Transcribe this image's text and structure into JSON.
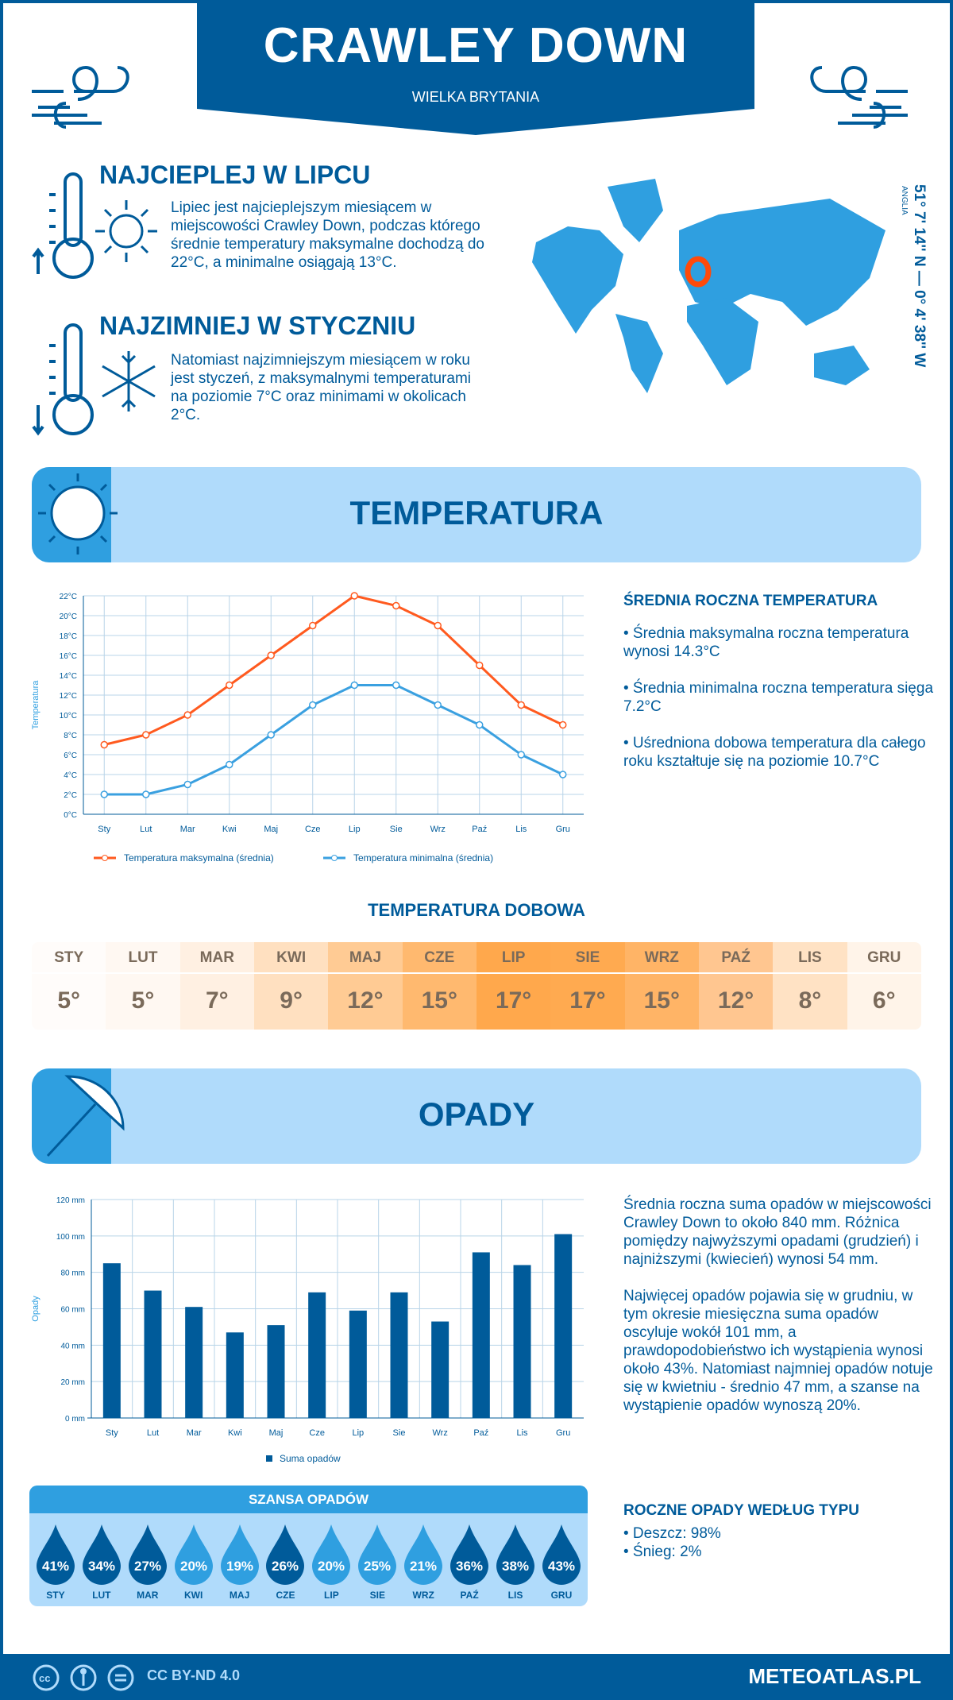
{
  "header": {
    "title": "CRAWLEY DOWN",
    "subtitle": "WIELKA BRYTANIA"
  },
  "warmest": {
    "heading": "NAJCIEPLEJ W LIPCU",
    "text": "Lipiec jest najcieplejszym miesiącem w miejscowości Crawley Down, podczas którego średnie temperatury maksymalne dochodzą do 22°C, a minimalne osiągają 13°C."
  },
  "coldest": {
    "heading": "NAJZIMNIEJ W STYCZNIU",
    "text": "Natomiast najzimniejszym miesiącem w roku jest styczeń, z maksymalnymi temperaturami na poziomie 7°C oraz minimami w okolicach 2°C."
  },
  "location": {
    "coords": "51° 7' 14'' N — 0° 4' 38'' W",
    "region": "ANGLIA"
  },
  "temperature_section": {
    "title": "TEMPERATURA",
    "summary_heading": "ŚREDNIA ROCZNA TEMPERATURA",
    "bullets": [
      "• Średnia maksymalna roczna temperatura wynosi 14.3°C",
      "• Średnia minimalna roczna temperatura sięga 7.2°C",
      "• Uśredniona dobowa temperatura dla całego roku kształtuje się na poziomie 10.7°C"
    ]
  },
  "daily": {
    "title": "TEMPERATURA DOBOWA",
    "months": [
      "STY",
      "LUT",
      "MAR",
      "KWI",
      "MAJ",
      "CZE",
      "LIP",
      "SIE",
      "WRZ",
      "PAŹ",
      "LIS",
      "GRU"
    ],
    "values": [
      "5°",
      "5°",
      "7°",
      "9°",
      "12°",
      "15°",
      "17°",
      "17°",
      "15°",
      "12°",
      "8°",
      "6°"
    ],
    "colors": [
      "#fffcfa",
      "#fff8f2",
      "#fff0e2",
      "#ffe0c0",
      "#ffcb94",
      "#ffb96f",
      "#ffa84c",
      "#ffaa50",
      "#ffb466",
      "#ffc690",
      "#ffe2c4",
      "#fff4e9"
    ]
  },
  "precip_section": {
    "title": "OPADY",
    "text1": "Średnia roczna suma opadów w miejscowości Crawley Down to około 840 mm. Różnica pomiędzy najwyższymi opadami (grudzień) i najniższymi (kwiecień) wynosi 54 mm.",
    "text2": "Najwięcej opadów pojawia się w grudniu, w tym okresie miesięczna suma opadów oscyluje wokół 101 mm, a prawdopodobieństwo ich wystąpienia wynosi około 43%. Natomiast najmniej opadów notuje się w kwietniu - średnio 47 mm, a szanse na wystąpienie opadów wynoszą 20%.",
    "type_heading": "ROCZNE OPADY WEDŁUG TYPU",
    "types": [
      "• Deszcz: 98%",
      "• Śnieg: 2%"
    ]
  },
  "chance": {
    "title": "SZANSA OPADÓW",
    "months": [
      "STY",
      "LUT",
      "MAR",
      "KWI",
      "MAJ",
      "CZE",
      "LIP",
      "SIE",
      "WRZ",
      "PAŹ",
      "LIS",
      "GRU"
    ],
    "values": [
      "41%",
      "34%",
      "27%",
      "20%",
      "19%",
      "26%",
      "20%",
      "25%",
      "21%",
      "36%",
      "38%",
      "43%"
    ],
    "dark_color": "#005b9a",
    "light_color": "#2f9fe0"
  },
  "footer": {
    "license": "CC BY-ND 4.0",
    "brand": "METEOATLAS.PL"
  },
  "chart_data": [
    {
      "type": "line",
      "ylabel": "Temperatura",
      "ylim": [
        0,
        22
      ],
      "yticks": [
        "0°C",
        "2°C",
        "4°C",
        "6°C",
        "8°C",
        "10°C",
        "12°C",
        "14°C",
        "16°C",
        "18°C",
        "20°C",
        "22°C"
      ],
      "categories": [
        "Sty",
        "Lut",
        "Mar",
        "Kwi",
        "Maj",
        "Cze",
        "Lip",
        "Sie",
        "Wrz",
        "Paź",
        "Lis",
        "Gru"
      ],
      "grid": true,
      "legend": "bottom",
      "series": [
        {
          "name": "Temperatura maksymalna (średnia)",
          "color": "#ff5a1f",
          "values": [
            7,
            8,
            10,
            13,
            16,
            19,
            22,
            21,
            19,
            15,
            11,
            9
          ]
        },
        {
          "name": "Temperatura minimalna (średnia)",
          "color": "#3aa0e0",
          "values": [
            2,
            2,
            3,
            5,
            8,
            11,
            13,
            13,
            11,
            9,
            6,
            4
          ]
        }
      ]
    },
    {
      "type": "bar",
      "ylabel": "Opady",
      "ylim": [
        0,
        120
      ],
      "yticks": [
        "0 mm",
        "20 mm",
        "40 mm",
        "60 mm",
        "80 mm",
        "100 mm",
        "120 mm"
      ],
      "categories": [
        "Sty",
        "Lut",
        "Mar",
        "Kwi",
        "Maj",
        "Cze",
        "Lip",
        "Sie",
        "Wrz",
        "Paź",
        "Lis",
        "Gru"
      ],
      "grid": true,
      "legend": "bottom",
      "series": [
        {
          "name": "Suma opadów",
          "color": "#005b9a",
          "values": [
            85,
            70,
            61,
            47,
            51,
            69,
            59,
            69,
            53,
            91,
            84,
            101
          ]
        }
      ]
    }
  ]
}
